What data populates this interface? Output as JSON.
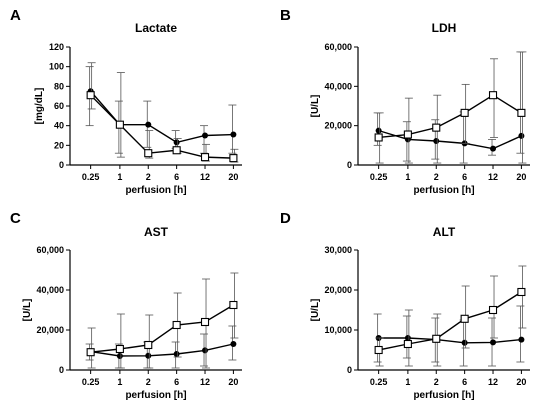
{
  "chart_data": [
    {
      "panel": "A",
      "type": "line",
      "title": "Lactate",
      "xlabel": "perfusion [h]",
      "ylabel": "[mg/dL]",
      "categories": [
        "0.25",
        "1",
        "2",
        "6",
        "12",
        "20"
      ],
      "ylim": [
        0,
        120
      ],
      "yticks": [
        0,
        20,
        40,
        60,
        80,
        100,
        120
      ],
      "ytick_labels": [
        "0",
        "20",
        "40",
        "60",
        "80",
        "100",
        "120"
      ],
      "series": [
        {
          "marker": "filled-circle",
          "values": [
            75,
            41,
            41,
            23,
            30,
            31
          ],
          "err_low": [
            40,
            12,
            18,
            17,
            12,
            12
          ],
          "err_high": [
            100,
            65,
            65,
            35,
            40,
            61
          ]
        },
        {
          "marker": "open-square",
          "values": [
            71,
            41,
            12,
            15,
            8,
            7
          ],
          "err_low": [
            57,
            8,
            7,
            12,
            4,
            3
          ],
          "err_high": [
            104,
            94,
            35,
            27,
            21,
            16
          ]
        }
      ]
    },
    {
      "panel": "B",
      "type": "line",
      "title": "LDH",
      "xlabel": "perfusion [h]",
      "ylabel": "[U/L]",
      "categories": [
        "0.25",
        "1",
        "2",
        "6",
        "12",
        "20"
      ],
      "ylim": [
        0,
        60000
      ],
      "yticks": [
        0,
        20000,
        40000,
        60000
      ],
      "ytick_labels": [
        "0",
        "20,000",
        "40,000",
        "60,000"
      ],
      "series": [
        {
          "marker": "filled-circle",
          "values": [
            17500,
            13000,
            12200,
            11000,
            8300,
            14800
          ],
          "err_low": [
            10000,
            2000,
            3000,
            1000,
            5000,
            6000
          ],
          "err_high": [
            26500,
            22000,
            23000,
            27000,
            13000,
            57500
          ]
        },
        {
          "marker": "open-square",
          "values": [
            14000,
            15500,
            19000,
            26500,
            35500,
            26500
          ],
          "err_low": [
            1000,
            1000,
            1000,
            11000,
            14000,
            1000
          ],
          "err_high": [
            26500,
            34000,
            35500,
            41000,
            54000,
            57500
          ]
        }
      ]
    },
    {
      "panel": "C",
      "type": "line",
      "title": "AST",
      "xlabel": "perfusion [h]",
      "ylabel": "[U/L]",
      "categories": [
        "0.25",
        "1",
        "2",
        "6",
        "12",
        "20"
      ],
      "ylim": [
        0,
        60000
      ],
      "yticks": [
        0,
        20000,
        40000,
        60000
      ],
      "ytick_labels": [
        "0",
        "20,000",
        "40,000",
        "60,000"
      ],
      "series": [
        {
          "marker": "filled-circle",
          "values": [
            9200,
            7000,
            7100,
            8000,
            9800,
            13000
          ],
          "err_low": [
            5000,
            1000,
            1000,
            1000,
            2000,
            5000
          ],
          "err_high": [
            13000,
            13000,
            14000,
            14000,
            18000,
            22000
          ]
        },
        {
          "marker": "open-square",
          "values": [
            8900,
            10500,
            12500,
            22500,
            24000,
            32500
          ],
          "err_low": [
            1000,
            1000,
            1000,
            6500,
            1000,
            16000
          ],
          "err_high": [
            21000,
            28000,
            27500,
            38500,
            45500,
            48500
          ]
        }
      ]
    },
    {
      "panel": "D",
      "type": "line",
      "title": "ALT",
      "xlabel": "perfusion [h]",
      "ylabel": "[U/L]",
      "categories": [
        "0.25",
        "1",
        "2",
        "6",
        "12",
        "20"
      ],
      "ylim": [
        0,
        30000
      ],
      "yticks": [
        0,
        10000,
        20000,
        30000
      ],
      "ytick_labels": [
        "0",
        "10,000",
        "20,000",
        "30,000"
      ],
      "series": [
        {
          "marker": "filled-circle",
          "values": [
            8000,
            8000,
            7600,
            6800,
            6900,
            7600
          ],
          "err_low": [
            2000,
            3000,
            2000,
            1000,
            1000,
            2000
          ],
          "err_high": [
            14000,
            13500,
            13000,
            12500,
            13000,
            16000
          ]
        },
        {
          "marker": "open-square",
          "values": [
            5000,
            6500,
            7800,
            12800,
            15000,
            19500
          ],
          "err_low": [
            1000,
            1000,
            1000,
            5500,
            8000,
            10500
          ],
          "err_high": [
            8000,
            15000,
            14000,
            21000,
            23500,
            26000
          ]
        }
      ]
    }
  ]
}
